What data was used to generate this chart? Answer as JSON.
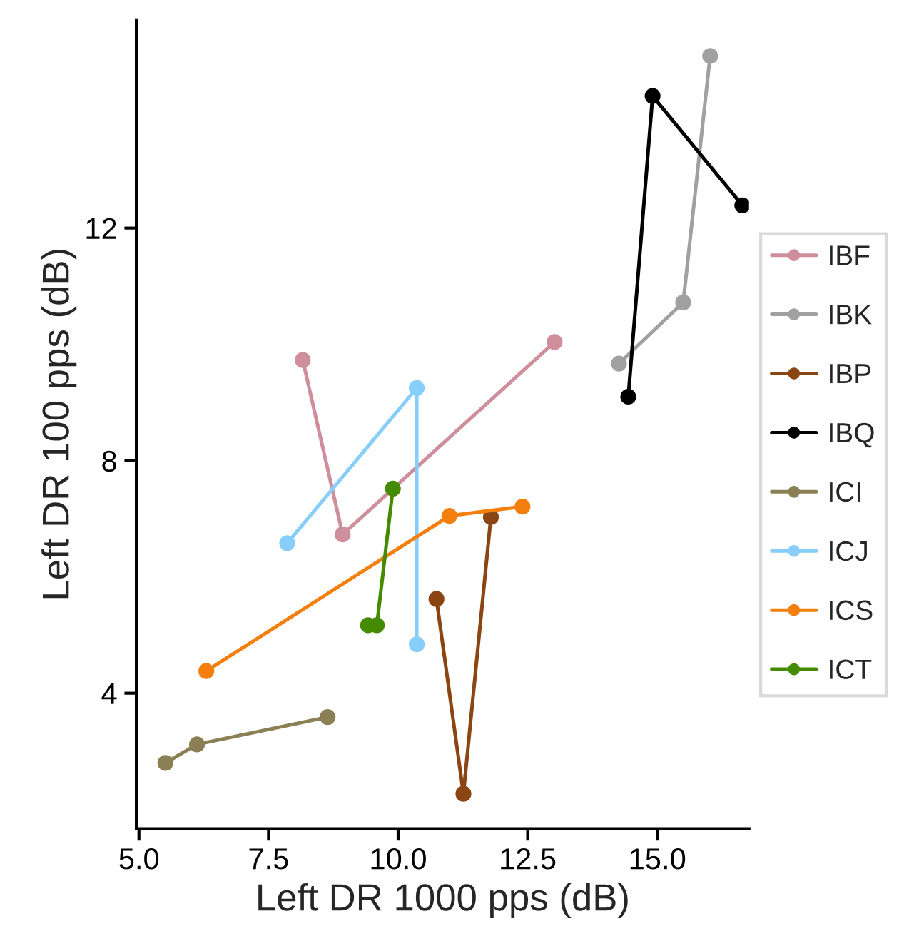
{
  "chart_data": {
    "type": "line",
    "xlabel": "Left DR 1000 pps (dB)",
    "ylabel": "Left DR 100 pps (dB)",
    "xlim": [
      4.95,
      16.77
    ],
    "ylim": [
      1.67,
      15.58
    ],
    "xticks": [
      {
        "value": 5,
        "label": "5.0"
      },
      {
        "value": 7.5,
        "label": "7.5"
      },
      {
        "value": 10,
        "label": "10.0"
      },
      {
        "value": 12.5,
        "label": "12.5"
      },
      {
        "value": 15,
        "label": "15.0"
      }
    ],
    "yticks": [
      4,
      8,
      12
    ],
    "grid": false,
    "legend": "right",
    "marker": "circle",
    "line_style": "solid",
    "series": [
      {
        "name": "IBF",
        "color": "#cf8e9b",
        "x": [
          8.16,
          8.93,
          13.02
        ],
        "values": [
          9.73,
          6.73,
          10.04
        ]
      },
      {
        "name": "IBK",
        "color": "#a0a0a0",
        "x": [
          14.26,
          15.5,
          16.02
        ],
        "values": [
          9.67,
          10.72,
          14.96
        ]
      },
      {
        "name": "IBP",
        "color": "#8b4513",
        "x": [
          10.74,
          11.26,
          11.79
        ],
        "values": [
          5.62,
          2.27,
          7.03
        ]
      },
      {
        "name": "IBQ",
        "color": "#000000",
        "x": [
          14.44,
          14.91,
          16.64
        ],
        "values": [
          9.1,
          14.27,
          12.39
        ]
      },
      {
        "name": "ICI",
        "color": "#8b8055",
        "x": [
          5.51,
          6.12,
          8.64
        ],
        "values": [
          2.8,
          3.12,
          3.59
        ]
      },
      {
        "name": "ICJ",
        "color": "#87cefa",
        "x": [
          7.86,
          10.36,
          10.36
        ],
        "values": [
          6.58,
          9.25,
          4.84
        ]
      },
      {
        "name": "ICS",
        "color": "#f57f0c",
        "x": [
          6.3,
          10.99,
          12.4
        ],
        "values": [
          4.38,
          7.05,
          7.21
        ]
      },
      {
        "name": "ICT",
        "color": "#458b00",
        "x": [
          9.42,
          9.59,
          9.9
        ],
        "values": [
          5.17,
          5.17,
          7.52
        ]
      }
    ]
  }
}
